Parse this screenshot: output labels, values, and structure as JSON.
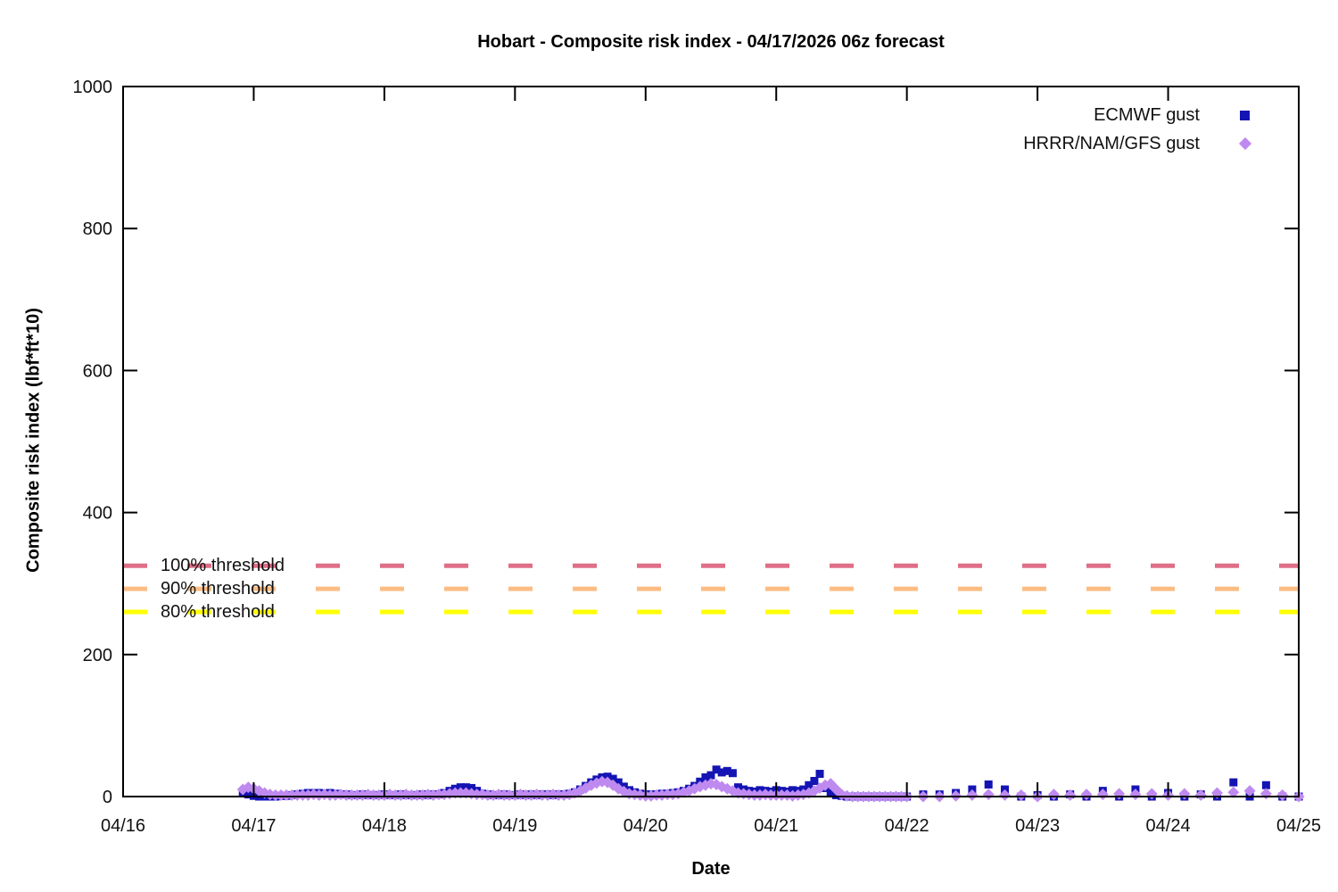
{
  "title": "Hobart - Composite risk index - 04/17/2026 06z forecast",
  "axes": {
    "xlabel": "Date",
    "ylabel": "Composite risk index (lbf*ft*10)"
  },
  "legend": [
    {
      "label": "ECMWF gust",
      "marker": "square-icon",
      "color": "#1414b4"
    },
    {
      "label": "HRRR/NAM/GFS gust",
      "marker": "diamond-icon",
      "color": "#bf8af0"
    }
  ],
  "thresholds": [
    {
      "label": "100% threshold",
      "value": 325,
      "color": "#df6e86"
    },
    {
      "label": "90% threshold",
      "value": 292.5,
      "color": "#fcbd84"
    },
    {
      "label": "80% threshold",
      "value": 260,
      "color": "#ffff00"
    }
  ],
  "chart_data": {
    "type": "scatter",
    "title": "Hobart - Composite risk index - 04/17/2026 06z forecast",
    "xlabel": "Date",
    "ylabel": "Composite risk index (lbf*ft*10)",
    "x_unit": "hours since 04/16 00z",
    "xlim_hours": [
      0,
      216
    ],
    "ylim": [
      0,
      1000
    ],
    "y_ticks": [
      0,
      200,
      400,
      600,
      800,
      1000
    ],
    "x_tick_labels": [
      "04/16",
      "04/17",
      "04/18",
      "04/19",
      "04/20",
      "04/21",
      "04/22",
      "04/23",
      "04/24",
      "04/25"
    ],
    "grid": false,
    "legend_position": "top-right",
    "series": [
      {
        "name": "ECMWF gust",
        "marker": "square",
        "color": "#1414b4",
        "x_hours": [
          22,
          23,
          24,
          25,
          26,
          27,
          28,
          29,
          30,
          31,
          32,
          33,
          34,
          35,
          36,
          37,
          38,
          39,
          40,
          41,
          42,
          43,
          44,
          45,
          46,
          47,
          48,
          49,
          50,
          51,
          52,
          53,
          54,
          55,
          56,
          57,
          58,
          59,
          60,
          61,
          62,
          63,
          64,
          65,
          66,
          67,
          68,
          69,
          70,
          71,
          72,
          73,
          74,
          75,
          76,
          77,
          78,
          79,
          80,
          81,
          82,
          83,
          84,
          85,
          86,
          87,
          88,
          89,
          90,
          91,
          92,
          93,
          94,
          95,
          96,
          97,
          98,
          99,
          100,
          101,
          102,
          103,
          104,
          105,
          106,
          107,
          108,
          109,
          110,
          111,
          112,
          113,
          114,
          115,
          116,
          117,
          118,
          119,
          120,
          121,
          122,
          123,
          124,
          125,
          126,
          127,
          128,
          129,
          130,
          131,
          132,
          133,
          134,
          135,
          136,
          137,
          138,
          139,
          140,
          141,
          142,
          143,
          144,
          147,
          150,
          153,
          156,
          159,
          162,
          165,
          168,
          171,
          174,
          177,
          180,
          183,
          186,
          189,
          192,
          195,
          198,
          201,
          204,
          207,
          210,
          213,
          216
        ],
        "values": [
          6,
          3,
          1,
          0,
          0,
          0,
          0,
          1,
          1,
          2,
          3,
          4,
          5,
          5,
          5,
          4,
          5,
          4,
          3,
          3,
          2,
          2,
          3,
          2,
          2,
          2,
          3,
          2,
          2,
          3,
          2,
          2,
          2,
          3,
          2,
          3,
          3,
          5,
          8,
          11,
          13,
          13,
          12,
          8,
          4,
          3,
          2,
          2,
          3,
          2,
          2,
          3,
          2,
          3,
          2,
          3,
          3,
          2,
          3,
          3,
          4,
          6,
          10,
          15,
          20,
          24,
          27,
          28,
          25,
          20,
          14,
          9,
          6,
          4,
          3,
          3,
          3,
          4,
          4,
          5,
          6,
          8,
          11,
          15,
          21,
          27,
          30,
          38,
          34,
          36,
          33,
          13,
          10,
          8,
          7,
          9,
          8,
          7,
          9,
          8,
          7,
          9,
          8,
          10,
          16,
          22,
          32,
          12,
          5,
          2,
          1,
          0,
          0,
          0,
          0,
          0,
          0,
          0,
          0,
          0,
          0,
          0,
          0,
          3,
          3,
          5,
          10,
          17,
          10,
          0,
          2,
          0,
          3,
          0,
          8,
          0,
          10,
          0,
          5,
          0,
          3,
          0,
          20,
          0,
          16,
          0,
          0
        ]
      },
      {
        "name": "HRRR/NAM/GFS gust",
        "marker": "diamond",
        "color": "#bf8af0",
        "x_hours": [
          22,
          23,
          24,
          25,
          26,
          27,
          28,
          29,
          30,
          31,
          32,
          33,
          34,
          35,
          36,
          37,
          38,
          39,
          40,
          41,
          42,
          43,
          44,
          45,
          46,
          47,
          48,
          49,
          50,
          51,
          52,
          53,
          54,
          55,
          56,
          57,
          58,
          59,
          60,
          61,
          62,
          63,
          64,
          65,
          66,
          67,
          68,
          69,
          70,
          71,
          72,
          73,
          74,
          75,
          76,
          77,
          78,
          79,
          80,
          81,
          82,
          83,
          84,
          85,
          86,
          87,
          88,
          89,
          90,
          91,
          92,
          93,
          94,
          95,
          96,
          97,
          98,
          99,
          100,
          101,
          102,
          103,
          104,
          105,
          106,
          107,
          108,
          109,
          110,
          111,
          112,
          113,
          114,
          115,
          116,
          117,
          118,
          119,
          120,
          121,
          122,
          123,
          124,
          125,
          126,
          127,
          128,
          129,
          130,
          131,
          132,
          133,
          134,
          135,
          136,
          137,
          138,
          139,
          140,
          141,
          142,
          143,
          144,
          147,
          150,
          153,
          156,
          159,
          162,
          165,
          168,
          171,
          174,
          177,
          180,
          183,
          186,
          189,
          192,
          195,
          198,
          201,
          204,
          207,
          210,
          213,
          216
        ],
        "values": [
          10,
          13,
          11,
          8,
          5,
          3,
          2,
          2,
          2,
          2,
          2,
          2,
          2,
          3,
          2,
          3,
          2,
          2,
          3,
          2,
          2,
          2,
          2,
          3,
          2,
          2,
          2,
          3,
          2,
          2,
          3,
          2,
          2,
          2,
          3,
          2,
          3,
          3,
          4,
          5,
          5,
          5,
          4,
          3,
          3,
          2,
          2,
          3,
          2,
          2,
          2,
          3,
          2,
          2,
          3,
          2,
          2,
          3,
          2,
          2,
          3,
          5,
          8,
          12,
          16,
          19,
          21,
          20,
          16,
          11,
          7,
          4,
          3,
          2,
          1,
          1,
          2,
          2,
          3,
          3,
          4,
          6,
          8,
          11,
          14,
          16,
          18,
          17,
          14,
          11,
          8,
          5,
          4,
          3,
          2,
          2,
          3,
          2,
          2,
          2,
          2,
          1,
          2,
          3,
          5,
          8,
          12,
          16,
          18,
          10,
          3,
          1,
          0,
          0,
          0,
          0,
          0,
          0,
          0,
          0,
          0,
          0,
          0,
          0,
          0,
          1,
          2,
          3,
          2,
          2,
          0,
          3,
          2,
          3,
          3,
          4,
          3,
          4,
          2,
          4,
          2,
          5,
          6,
          8,
          4,
          2,
          0
        ]
      }
    ],
    "threshold_lines": [
      {
        "label": "100% threshold",
        "value": 325,
        "color": "#df6e86",
        "style": "dashed"
      },
      {
        "label": "90% threshold",
        "value": 292.5,
        "color": "#fcbd84",
        "style": "dashed"
      },
      {
        "label": "80% threshold",
        "value": 260,
        "color": "#ffff00",
        "style": "dashed"
      }
    ]
  }
}
